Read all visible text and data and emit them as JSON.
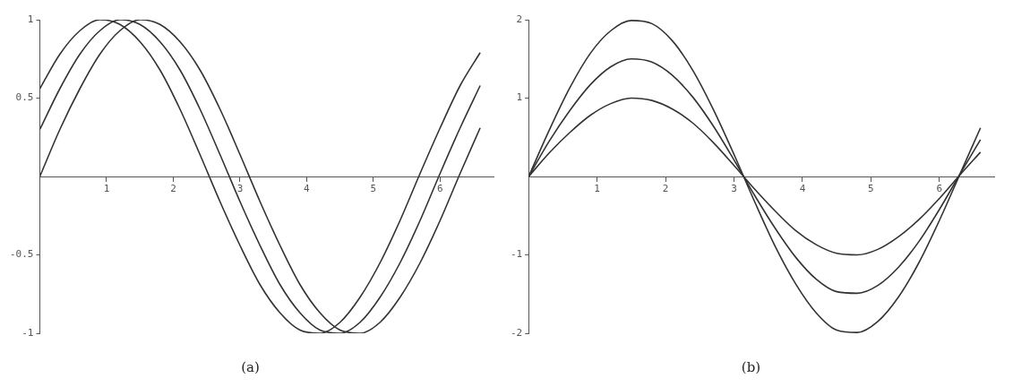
{
  "chart_data": [
    {
      "type": "line",
      "title": "(a)",
      "x": [
        0,
        0.3,
        0.6,
        0.9,
        1.2,
        1.5,
        1.8,
        2.1,
        2.4,
        2.7,
        3.0,
        3.3,
        3.6,
        3.9,
        4.2,
        4.5,
        4.8,
        5.1,
        5.4,
        5.7,
        6.0,
        6.3,
        6.6
      ],
      "series": [
        {
          "color": "#333333",
          "values": [
            0,
            0.3,
            0.56,
            0.78,
            0.93,
            1.0,
            0.97,
            0.86,
            0.68,
            0.43,
            0.14,
            -0.16,
            -0.44,
            -0.69,
            -0.87,
            -0.98,
            -1.0,
            -0.93,
            -0.77,
            -0.55,
            -0.28,
            0.02,
            0.31
          ]
        },
        {
          "color": "#333333",
          "values": [
            0.3,
            0.56,
            0.78,
            0.93,
            1.0,
            0.97,
            0.86,
            0.68,
            0.43,
            0.14,
            -0.16,
            -0.44,
            -0.69,
            -0.87,
            -0.98,
            -1.0,
            -0.93,
            -0.77,
            -0.55,
            -0.28,
            0.02,
            0.31,
            0.58
          ]
        },
        {
          "color": "#333333",
          "values": [
            0.56,
            0.78,
            0.93,
            1.0,
            0.97,
            0.86,
            0.68,
            0.43,
            0.14,
            -0.16,
            -0.44,
            -0.69,
            -0.87,
            -0.98,
            -1.0,
            -0.93,
            -0.77,
            -0.55,
            -0.28,
            0.02,
            0.31,
            0.58,
            0.79
          ]
        }
      ],
      "xlim": [
        0,
        6.8
      ],
      "ylim": [
        -1,
        1
      ],
      "xticks": [
        1,
        2,
        3,
        4,
        5,
        6
      ],
      "yticks": [
        -1,
        -0.5,
        0.5,
        1
      ],
      "grid": false,
      "legend": false,
      "marker": "none",
      "line_style": "solid"
    },
    {
      "type": "line",
      "title": "(b)",
      "x": [
        0,
        0.3,
        0.6,
        0.9,
        1.2,
        1.5,
        1.8,
        2.1,
        2.4,
        2.7,
        3.0,
        3.3,
        3.6,
        3.9,
        4.2,
        4.5,
        4.8,
        5.1,
        5.4,
        5.7,
        6.0,
        6.3,
        6.6
      ],
      "series": [
        {
          "color": "#333333",
          "values": [
            0,
            0.3,
            0.56,
            0.78,
            0.93,
            1.0,
            0.97,
            0.86,
            0.68,
            0.43,
            0.14,
            -0.16,
            -0.44,
            -0.69,
            -0.87,
            -0.98,
            -1.0,
            -0.93,
            -0.77,
            -0.55,
            -0.28,
            0.02,
            0.31
          ]
        },
        {
          "color": "#333333",
          "values": [
            0,
            0.45,
            0.84,
            1.17,
            1.4,
            1.5,
            1.46,
            1.29,
            1.01,
            0.64,
            0.21,
            -0.24,
            -0.66,
            -1.03,
            -1.31,
            -1.47,
            -1.49,
            -1.39,
            -1.16,
            -0.83,
            -0.42,
            0.03,
            0.47
          ]
        },
        {
          "color": "#333333",
          "values": [
            0,
            0.59,
            1.13,
            1.57,
            1.86,
            1.99,
            1.95,
            1.73,
            1.35,
            0.85,
            0.28,
            -0.32,
            -0.89,
            -1.37,
            -1.74,
            -1.96,
            -1.99,
            -1.85,
            -1.54,
            -1.1,
            -0.56,
            0.03,
            0.62
          ]
        }
      ],
      "xlim": [
        0,
        6.8
      ],
      "ylim": [
        -2,
        2
      ],
      "xticks": [
        1,
        2,
        3,
        4,
        5,
        6
      ],
      "yticks": [
        -2,
        -1,
        1,
        2
      ],
      "grid": false,
      "legend": false,
      "marker": "none",
      "line_style": "solid"
    }
  ]
}
